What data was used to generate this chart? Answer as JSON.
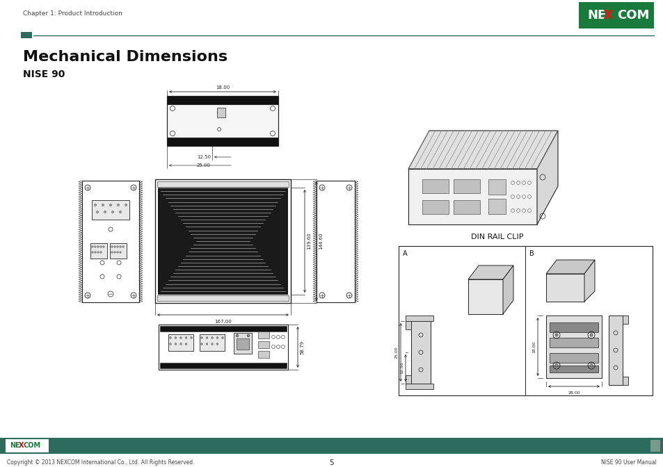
{
  "title": "Mechanical Dimensions",
  "subtitle": "NISE 90",
  "header_text": "Chapter 1: Product Introduction",
  "header_line_color": "#2d6b5e",
  "header_square_color": "#2d6b5e",
  "nexcom_bg": "#1a7a3c",
  "footer_bar_color": "#2d6b5e",
  "footer_text_left": "Copyright © 2013 NEXCOM International Co., Ltd. All Rights Reserved.",
  "footer_text_center": "5",
  "footer_text_right": "NISE 90 User Manual",
  "bg_color": "#ffffff",
  "lc": "#222222",
  "dc": "#333333",
  "dim_labels": {
    "top_width": "18.00",
    "top_depth1": "12.50",
    "top_depth2": "25.00",
    "side_height1": "139.60",
    "side_height2": "144.60",
    "front_width": "167.00",
    "bottom_width": "58.79",
    "din_25": "25.00",
    "din_1250": "12.50",
    "din_18": "18.00",
    "din_28": "28.00"
  },
  "page_width": 9.54,
  "page_height": 6.72
}
